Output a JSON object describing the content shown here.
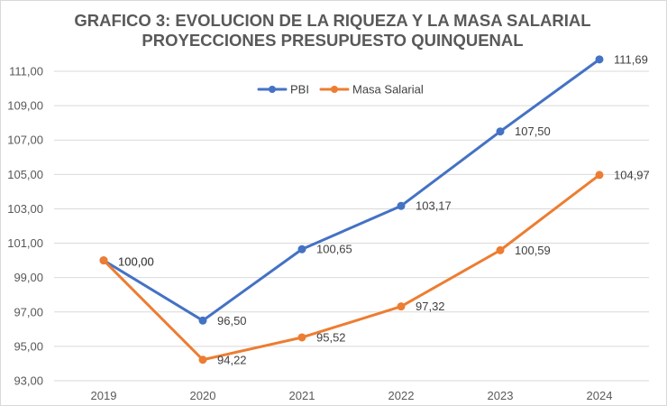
{
  "chart_data": {
    "type": "line",
    "title_line1": "GRAFICO 3: EVOLUCION DE LA RIQUEZA Y LA MASA SALARIAL",
    "title_line2": "PROYECCIONES PRESUPUESTO QUINQUENAL",
    "categories": [
      "2019",
      "2020",
      "2021",
      "2022",
      "2023",
      "2024"
    ],
    "ylim": [
      93,
      111
    ],
    "yticks": [
      93,
      95,
      97,
      99,
      101,
      103,
      105,
      107,
      109,
      111
    ],
    "grid": true,
    "legend_position": "top-center",
    "series": [
      {
        "name": "PBI",
        "color": "#4472c4",
        "values": [
          100.0,
          96.5,
          100.65,
          103.17,
          107.5,
          111.69
        ],
        "labels": [
          "100,00",
          "96,50",
          "100,65",
          "103,17",
          "107,50",
          "111,69"
        ]
      },
      {
        "name": "Masa Salarial",
        "color": "#ed7d31",
        "values": [
          100.0,
          94.22,
          95.52,
          97.32,
          100.59,
          104.97
        ],
        "labels": [
          "100,00",
          "94,22",
          "95,52",
          "97,32",
          "100,59",
          "104,97"
        ]
      }
    ]
  }
}
